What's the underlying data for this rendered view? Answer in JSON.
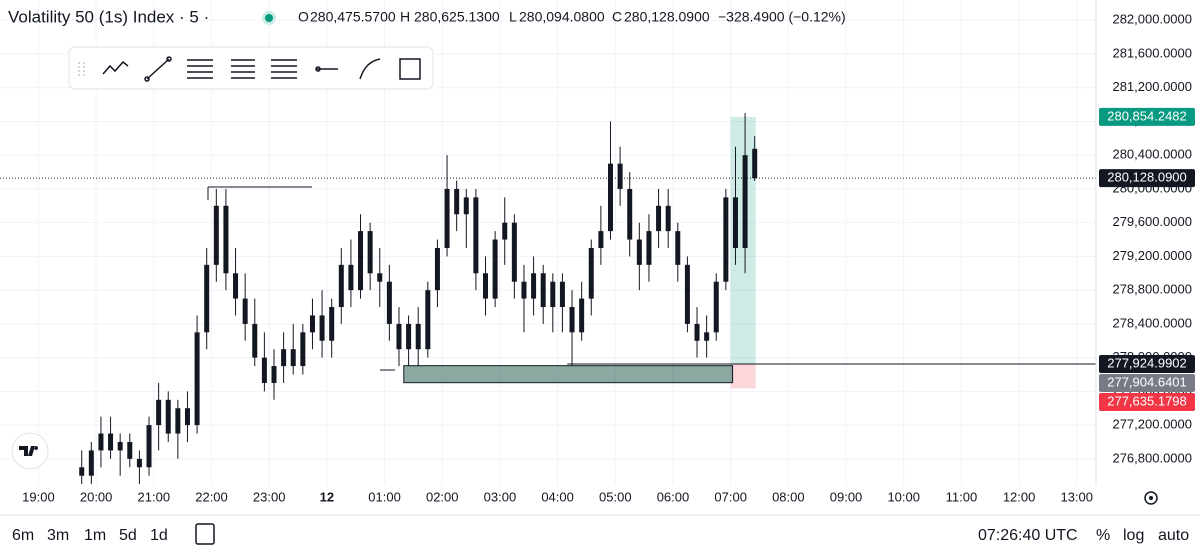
{
  "header": {
    "symbol": "Volatility 50 (1s) Index · 5 ·",
    "ohlc": [
      {
        "prefix": "O",
        "value": 280475.57,
        "label": "280,475.5700"
      },
      {
        "prefix": "H",
        "value": 280625.13,
        "label": "280,625.1300"
      },
      {
        "prefix": "L",
        "value": 280094.08,
        "label": "280,094.0800"
      },
      {
        "prefix": "C",
        "value": 280128.09,
        "label": "280,128.0900"
      }
    ],
    "change": "−328.4900 (−0.12%)"
  },
  "chart_data": {
    "type": "candlestick",
    "color": "#131722",
    "open": [
      276700,
      276600,
      276900,
      277100,
      276900,
      277000,
      276800,
      276700,
      277200,
      277500,
      277100,
      277400,
      277200,
      278300,
      279100,
      279800,
      279000,
      278700,
      278400,
      278000,
      277700,
      277900,
      278100,
      277900,
      278300,
      278500,
      278200,
      278600,
      279100,
      278800,
      279500,
      279000,
      278900,
      278400,
      278100,
      278400,
      278100,
      278800,
      279300,
      280000,
      279700,
      279900,
      279000,
      278700,
      279400,
      279600,
      278900,
      278700,
      279000,
      278600,
      278900,
      278600,
      278300,
      278700,
      279300,
      279500,
      280300,
      280000,
      279400,
      279100,
      279500,
      279800,
      279500,
      279100,
      278400,
      278200,
      278300,
      278900,
      279900,
      279300,
      280475.57
    ],
    "high": [
      276900,
      277000,
      277300,
      277300,
      277100,
      277100,
      276900,
      277300,
      277700,
      277600,
      277500,
      277600,
      278500,
      279300,
      280000,
      280000,
      279300,
      279000,
      278700,
      278300,
      278100,
      278300,
      278400,
      278400,
      278700,
      278800,
      278700,
      279300,
      279400,
      279700,
      279600,
      279300,
      279100,
      278600,
      278500,
      278600,
      278900,
      279400,
      280400,
      280100,
      280000,
      280000,
      279200,
      279500,
      279900,
      279700,
      279100,
      279200,
      279100,
      279000,
      279000,
      278800,
      278900,
      279400,
      279800,
      280800,
      280500,
      280200,
      279600,
      279700,
      280000,
      280000,
      279600,
      279200,
      278600,
      278500,
      279000,
      280000,
      280500,
      280900,
      280625.13
    ],
    "low": [
      276500,
      276500,
      276700,
      276800,
      276600,
      276700,
      276500,
      276600,
      276900,
      277000,
      276800,
      277000,
      277100,
      278100,
      278900,
      278800,
      278500,
      278200,
      277900,
      277600,
      277500,
      277700,
      277800,
      277800,
      278100,
      278000,
      278000,
      278400,
      278600,
      278700,
      278800,
      278600,
      278200,
      277900,
      277900,
      277900,
      278000,
      278600,
      279200,
      279500,
      279300,
      278800,
      278500,
      278600,
      279100,
      278700,
      278300,
      278500,
      278400,
      278300,
      278300,
      277900,
      278200,
      278500,
      279100,
      279400,
      279800,
      279200,
      278800,
      278900,
      279300,
      279300,
      278900,
      278300,
      278000,
      278000,
      278200,
      278800,
      279100,
      279000,
      280094.08
    ],
    "close": [
      276600,
      276900,
      277100,
      276900,
      277000,
      276800,
      276700,
      277200,
      277500,
      277100,
      277400,
      277200,
      278300,
      279100,
      279800,
      279000,
      278700,
      278400,
      278000,
      277700,
      277900,
      278100,
      277900,
      278300,
      278500,
      278200,
      278600,
      279100,
      278800,
      279500,
      279000,
      278900,
      278400,
      278100,
      278400,
      278100,
      278800,
      279300,
      280000,
      279700,
      279900,
      279000,
      278700,
      279400,
      279600,
      278900,
      278700,
      279000,
      278600,
      278900,
      278600,
      278300,
      278700,
      279300,
      279500,
      280300,
      280000,
      279400,
      279100,
      279500,
      279800,
      279500,
      279100,
      278400,
      278200,
      278300,
      278900,
      279900,
      279300,
      280400,
      280128.09
    ],
    "xlim": [
      -8,
      106
    ],
    "xticks": [
      {
        "value": -4,
        "label": "19:00"
      },
      {
        "value": 2,
        "label": "20:00"
      },
      {
        "value": 8,
        "label": "21:00"
      },
      {
        "value": 14,
        "label": "22:00"
      },
      {
        "value": 20,
        "label": "23:00"
      },
      {
        "value": 26,
        "label": "12"
      },
      {
        "value": 32,
        "label": "01:00"
      },
      {
        "value": 38,
        "label": "02:00"
      },
      {
        "value": 44,
        "label": "03:00"
      },
      {
        "value": 50,
        "label": "04:00"
      },
      {
        "value": 56,
        "label": "05:00"
      },
      {
        "value": 62,
        "label": "06:00"
      },
      {
        "value": 68,
        "label": "07:00"
      },
      {
        "value": 74,
        "label": "08:00"
      },
      {
        "value": 80,
        "label": "09:00"
      },
      {
        "value": 86,
        "label": "10:00"
      },
      {
        "value": 92,
        "label": "11:00"
      },
      {
        "value": 98,
        "label": "12:00"
      },
      {
        "value": 104,
        "label": "13:00"
      }
    ],
    "ylim": [
      276490,
      282240
    ],
    "yticks": [
      {
        "value": 282000,
        "label": "282,000.0000"
      },
      {
        "value": 281600,
        "label": "281,600.0000"
      },
      {
        "value": 281200,
        "label": "281,200.0000"
      },
      {
        "value": 280800,
        "label": "280,800.0000"
      },
      {
        "value": 280400,
        "label": "280,400.0000"
      },
      {
        "value": 280000,
        "label": "280,000.0000"
      },
      {
        "value": 279600,
        "label": "279,600.0000"
      },
      {
        "value": 279200,
        "label": "279,200.0000"
      },
      {
        "value": 278800,
        "label": "278,800.0000"
      },
      {
        "value": 278400,
        "label": "278,400.0000"
      },
      {
        "value": 278000,
        "label": "278,000.0000"
      },
      {
        "value": 277600,
        "label": "277,600.0000"
      },
      {
        "value": 277200,
        "label": "277,200.0000"
      },
      {
        "value": 276800,
        "label": "276,800.0000"
      }
    ],
    "grid": true,
    "price_labels": [
      {
        "value": 280854.2482,
        "label": "280,854.2482",
        "color": "#089981"
      },
      {
        "value": 280128.09,
        "label": "280,128.0900",
        "color": "#131722"
      },
      {
        "value": 277924.9902,
        "label": "277,924.9902",
        "color": "#131722"
      },
      {
        "value": 277904.6401,
        "label": "277,904.6401",
        "color": "#787b86"
      },
      {
        "value": 277635.1798,
        "label": "277,635.1798",
        "color": "#f23645"
      }
    ]
  },
  "footer": {
    "ranges": [
      "6m",
      "3m",
      "1m",
      "5d",
      "1d"
    ],
    "clock": "07:26:40 UTC",
    "options": [
      "%",
      "log",
      "auto"
    ]
  }
}
